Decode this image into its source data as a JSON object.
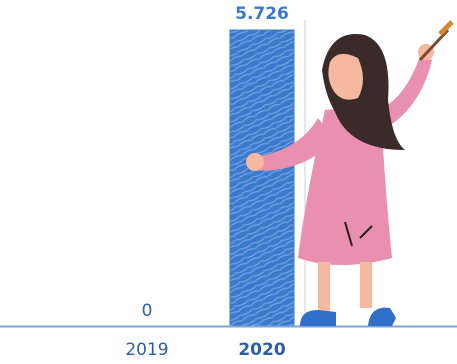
{
  "chart_data": {
    "type": "bar",
    "categories": [
      "2019",
      "2020"
    ],
    "values": [
      0,
      5726
    ],
    "value_labels": [
      "0",
      "5.726"
    ],
    "color": "#3b79cc"
  }
}
